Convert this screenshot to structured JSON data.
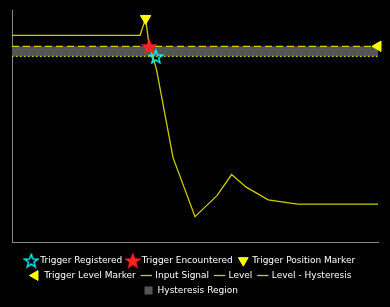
{
  "chart_data": {
    "type": "line",
    "xlim": [
      0.0,
      1.0
    ],
    "ylim": [
      -1.6,
      1.15
    ],
    "tick_labels": false,
    "grid": false,
    "legend": "bottom",
    "series": [
      {
        "name": "Hysteresis Region",
        "type": "band",
        "color": "#555555",
        "x": [
          0.0,
          1.0
        ],
        "low": [
          0.6,
          0.6
        ],
        "values": [
          0.72,
          0.72
        ]
      },
      {
        "name": "Input Signal",
        "type": "line",
        "color": "#cccc00",
        "line_style": "solid",
        "x": [
          0.0,
          0.08,
          0.16,
          0.24,
          0.3,
          0.35,
          0.365,
          0.375,
          0.385,
          0.395,
          0.44,
          0.5,
          0.56,
          0.6,
          0.64,
          0.7,
          0.78,
          0.86,
          1.0
        ],
        "values": [
          0.85,
          0.85,
          0.85,
          0.85,
          0.85,
          0.85,
          1.05,
          0.72,
          0.6,
          0.44,
          -0.6,
          -1.3,
          -1.05,
          -0.8,
          -0.95,
          -1.1,
          -1.15,
          -1.15,
          -1.15
        ]
      },
      {
        "name": "Level",
        "type": "line",
        "color": "#cccc00",
        "line_style": "dashed",
        "x": [
          0.0,
          1.0
        ],
        "values": [
          0.72,
          0.72
        ]
      },
      {
        "name": "Level - Hysteresis",
        "type": "line",
        "color": "#cccc00",
        "line_style": "dotted",
        "x": [
          0.0,
          1.0
        ],
        "values": [
          0.6,
          0.6
        ]
      },
      {
        "name": "Trigger Registered",
        "type": "scatter",
        "color": "#00ffff",
        "marker": "star-open",
        "x": [
          0.393
        ],
        "values": [
          0.6
        ]
      },
      {
        "name": "Trigger Encountered",
        "type": "scatter",
        "color": "#ff2222",
        "marker": "star",
        "x": [
          0.375
        ],
        "values": [
          0.72
        ]
      },
      {
        "name": "Trigger Position Marker",
        "type": "scatter",
        "color": "#ffff00",
        "marker": "triangle-down",
        "x": [
          0.365
        ],
        "values": [
          1.05
        ]
      },
      {
        "name": "Trigger Level Marker",
        "type": "scatter",
        "color": "#ffff00",
        "marker": "triangle-left",
        "x": [
          1.0
        ],
        "values": [
          0.72
        ]
      }
    ]
  }
}
